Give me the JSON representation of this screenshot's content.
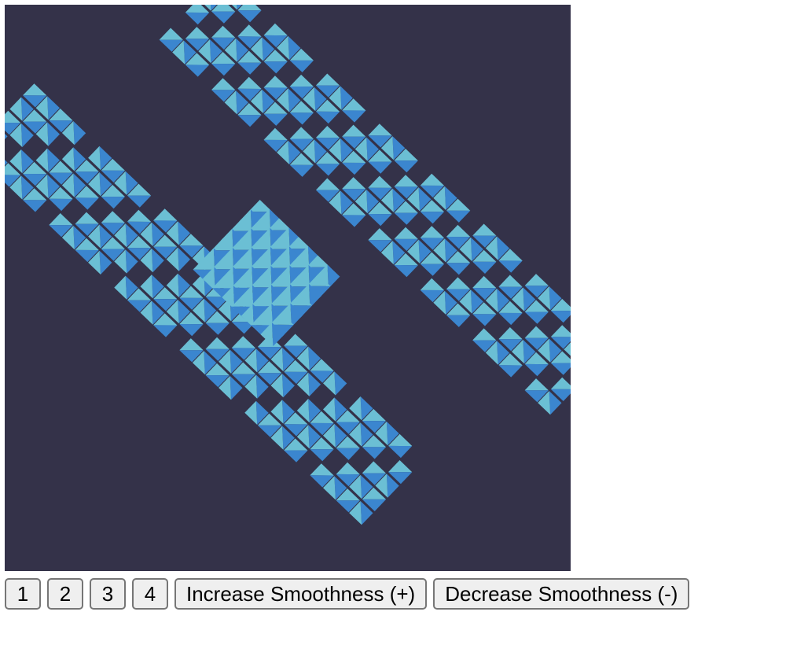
{
  "scene": {
    "background_color": "#343249",
    "light_color": "#6bbfd4",
    "dark_color": "#3b86cf"
  },
  "controls": {
    "buttons": [
      {
        "id": "mode-1",
        "label": "1"
      },
      {
        "id": "mode-2",
        "label": "2"
      },
      {
        "id": "mode-3",
        "label": "3"
      },
      {
        "id": "mode-4",
        "label": "4"
      }
    ],
    "increase_label": "Increase Smoothness (+)",
    "decrease_label": "Decrease Smoothness (-)"
  }
}
